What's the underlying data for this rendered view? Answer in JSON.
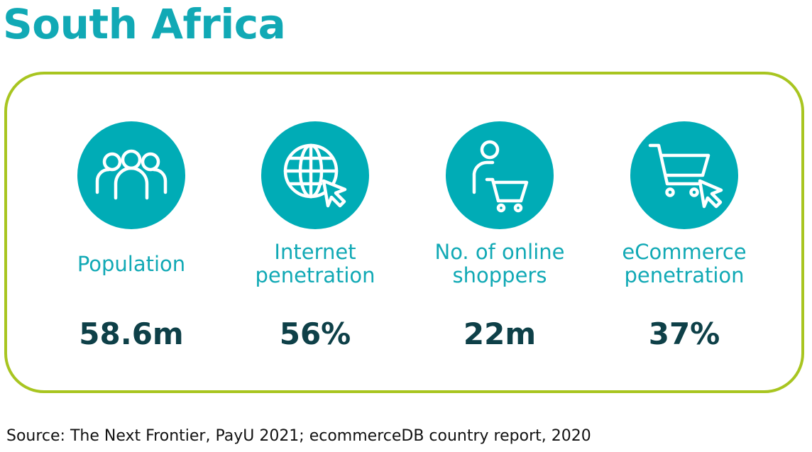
{
  "title": "South Africa",
  "colors": {
    "title": "#11a9b5",
    "icon_circle": "#00acb6",
    "panel_border": "#a8c520",
    "label": "#11a9b5",
    "value": "#0e4048"
  },
  "stats": [
    {
      "label": "Population",
      "value": "58.6m",
      "icon": "people-icon"
    },
    {
      "label_line1": "Internet",
      "label_line2": "penetration",
      "value": "56%",
      "icon": "globe-cursor-icon"
    },
    {
      "label_line1": "No. of online",
      "label_line2": "shoppers",
      "value": "22m",
      "icon": "shopper-cart-icon"
    },
    {
      "label_line1": "eCommerce",
      "label_line2": "penetration",
      "value": "37%",
      "icon": "cart-cursor-icon"
    }
  ],
  "source": "Source: The Next Frontier, PayU 2021; ecommerceDB country report, 2020"
}
